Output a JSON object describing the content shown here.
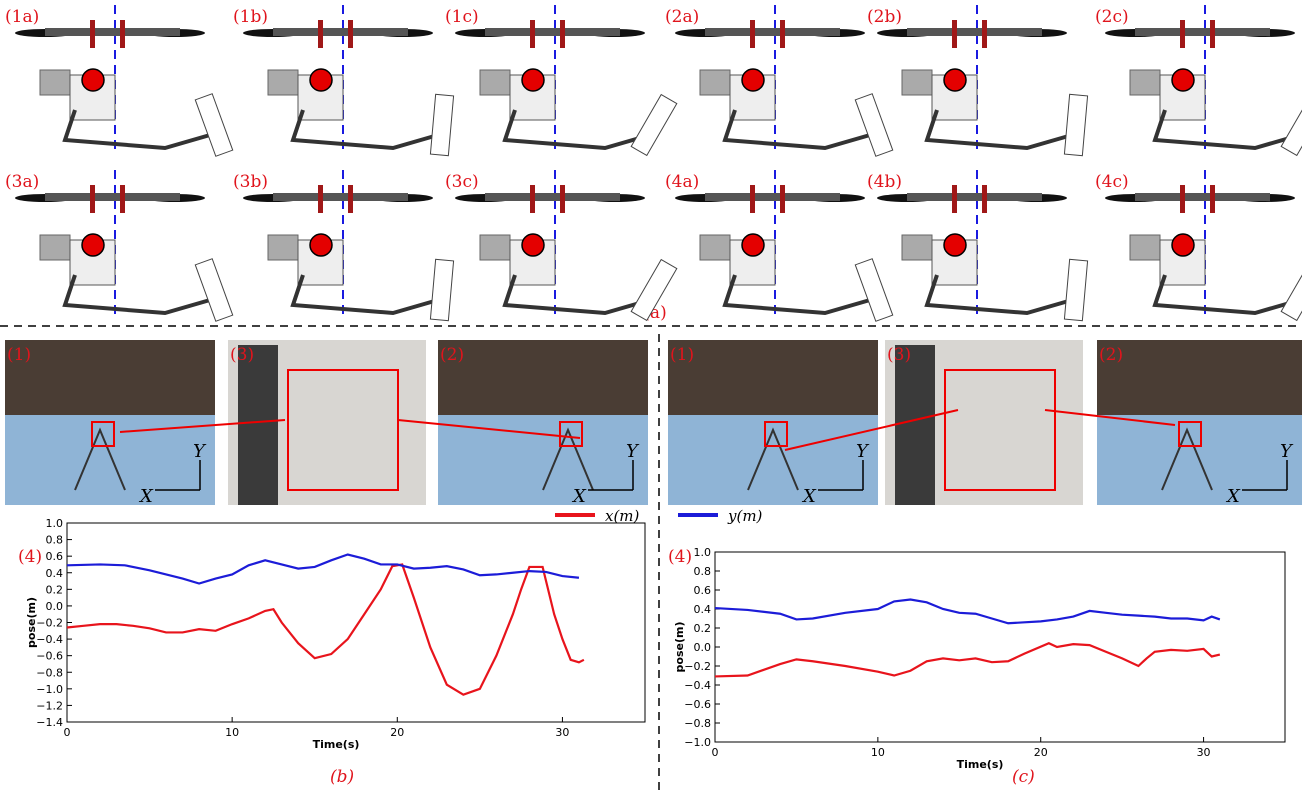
{
  "figure_a": {
    "label": "(a)",
    "poses": [
      "(1a)",
      "(1b)",
      "(1c)",
      "(2a)",
      "(2b)",
      "(2c)",
      "(3a)",
      "(3b)",
      "(3c)",
      "(4a)",
      "(4b)",
      "(4c)"
    ]
  },
  "photos_b": {
    "labels": [
      "(1)",
      "(3)",
      "(2)"
    ],
    "axes": [
      "X",
      "Y"
    ]
  },
  "photos_c": {
    "labels": [
      "(1)",
      "(3)",
      "(2)"
    ],
    "axes": [
      "X",
      "Y"
    ]
  },
  "legend": [
    {
      "name": "x(m)",
      "color": "#e8141c"
    },
    {
      "name": "y(m)",
      "color": "#1c1cd8"
    }
  ],
  "chart_data": [
    {
      "type": "line",
      "label": "(4)",
      "caption": "(b)",
      "xlabel": "Time(s)",
      "ylabel": "pose(m)",
      "xlim": [
        0,
        35
      ],
      "xticks": [
        0,
        10,
        20,
        30
      ],
      "ylim": [
        -1.4,
        1.0
      ],
      "yticks": [
        {
          "value": -1.4,
          "label": "−1.4"
        },
        {
          "value": -1.2,
          "label": "−1.2"
        },
        {
          "value": -1.0,
          "label": "−1.0"
        },
        {
          "value": -0.8,
          "label": "−0.8"
        },
        {
          "value": -0.6,
          "label": "−0.6"
        },
        {
          "value": -0.4,
          "label": "−0.4"
        },
        {
          "value": -0.2,
          "label": "−0.2"
        },
        {
          "value": 0,
          "label": "0.0"
        },
        {
          "value": 0.2,
          "label": "0.2"
        },
        {
          "value": 0.4,
          "label": "0.4"
        },
        {
          "value": 0.6,
          "label": "0.6"
        },
        {
          "value": 0.8,
          "label": "0.8"
        },
        {
          "value": 1.0,
          "label": "1.0"
        }
      ],
      "series": [
        {
          "color": "#e8141c",
          "x": [
            0,
            1,
            2,
            3,
            4,
            5,
            6,
            7,
            8,
            9,
            10,
            11,
            12,
            12.5,
            13,
            14,
            15,
            16,
            17,
            18,
            19,
            19.7,
            20.3,
            21,
            22,
            23,
            24,
            25,
            26,
            27,
            27.5,
            28,
            28.8,
            29.5,
            30,
            30.5,
            31,
            31.3
          ],
          "values": [
            -0.26,
            -0.24,
            -0.22,
            -0.22,
            -0.24,
            -0.27,
            -0.32,
            -0.32,
            -0.28,
            -0.3,
            -0.22,
            -0.15,
            -0.06,
            -0.04,
            -0.2,
            -0.45,
            -0.63,
            -0.58,
            -0.4,
            -0.1,
            0.2,
            0.48,
            0.5,
            0.1,
            -0.5,
            -0.95,
            -1.07,
            -1.0,
            -0.6,
            -0.1,
            0.2,
            0.47,
            0.47,
            -0.1,
            -0.4,
            -0.65,
            -0.68,
            -0.65
          ]
        },
        {
          "color": "#1c1cd8",
          "x": [
            0,
            2,
            3.5,
            5,
            6,
            7,
            8,
            9,
            10,
            11,
            12,
            13,
            14,
            15,
            16,
            17,
            18,
            19,
            20,
            21,
            22,
            23,
            24,
            25,
            26,
            27,
            28,
            29,
            30,
            31
          ],
          "values": [
            0.49,
            0.5,
            0.49,
            0.43,
            0.38,
            0.33,
            0.27,
            0.33,
            0.38,
            0.49,
            0.55,
            0.5,
            0.45,
            0.47,
            0.55,
            0.62,
            0.57,
            0.5,
            0.5,
            0.45,
            0.46,
            0.48,
            0.44,
            0.37,
            0.38,
            0.4,
            0.42,
            0.41,
            0.36,
            0.34
          ]
        }
      ]
    },
    {
      "type": "line",
      "label": "(4)",
      "caption": "(c)",
      "xlabel": "Time(s)",
      "ylabel": "pose(m)",
      "xlim": [
        0,
        35
      ],
      "xticks": [
        0,
        10,
        20,
        30
      ],
      "ylim": [
        -1.0,
        1.0
      ],
      "yticks": [
        {
          "value": -1.0,
          "label": "−1.0"
        },
        {
          "value": -0.8,
          "label": "−0.8"
        },
        {
          "value": -0.6,
          "label": "−0.6"
        },
        {
          "value": -0.4,
          "label": "−0.4"
        },
        {
          "value": -0.2,
          "label": "−0.2"
        },
        {
          "value": 0,
          "label": "0.0"
        },
        {
          "value": 0.2,
          "label": "0.2"
        },
        {
          "value": 0.4,
          "label": "0.4"
        },
        {
          "value": 0.6,
          "label": "0.6"
        },
        {
          "value": 0.8,
          "label": "0.8"
        },
        {
          "value": 1.0,
          "label": "1.0"
        }
      ],
      "series": [
        {
          "color": "#e8141c",
          "x": [
            0,
            2,
            4,
            5,
            6,
            8,
            10,
            11,
            12,
            13,
            14,
            15,
            16,
            17,
            18,
            19,
            20.5,
            21,
            22,
            23,
            24,
            25,
            26,
            26.5,
            27,
            28,
            29,
            30,
            30.5,
            31
          ],
          "values": [
            -0.31,
            -0.3,
            -0.18,
            -0.13,
            -0.15,
            -0.2,
            -0.26,
            -0.3,
            -0.25,
            -0.15,
            -0.12,
            -0.14,
            -0.12,
            -0.16,
            -0.15,
            -0.07,
            0.04,
            0,
            0.03,
            0.02,
            -0.05,
            -0.12,
            -0.2,
            -0.12,
            -0.05,
            -0.03,
            -0.04,
            -0.02,
            -0.1,
            -0.08
          ]
        },
        {
          "color": "#1c1cd8",
          "x": [
            0,
            2,
            4,
            5,
            6,
            8,
            10,
            11,
            12,
            13,
            14,
            15,
            16,
            17,
            18,
            19,
            20,
            21,
            22,
            23,
            24,
            25,
            26,
            27,
            28,
            29,
            30,
            30.5,
            31
          ],
          "values": [
            0.41,
            0.39,
            0.35,
            0.29,
            0.3,
            0.36,
            0.4,
            0.48,
            0.5,
            0.47,
            0.4,
            0.36,
            0.35,
            0.3,
            0.25,
            0.26,
            0.27,
            0.29,
            0.32,
            0.38,
            0.36,
            0.34,
            0.33,
            0.32,
            0.3,
            0.3,
            0.28,
            0.32,
            0.29
          ]
        }
      ]
    }
  ]
}
